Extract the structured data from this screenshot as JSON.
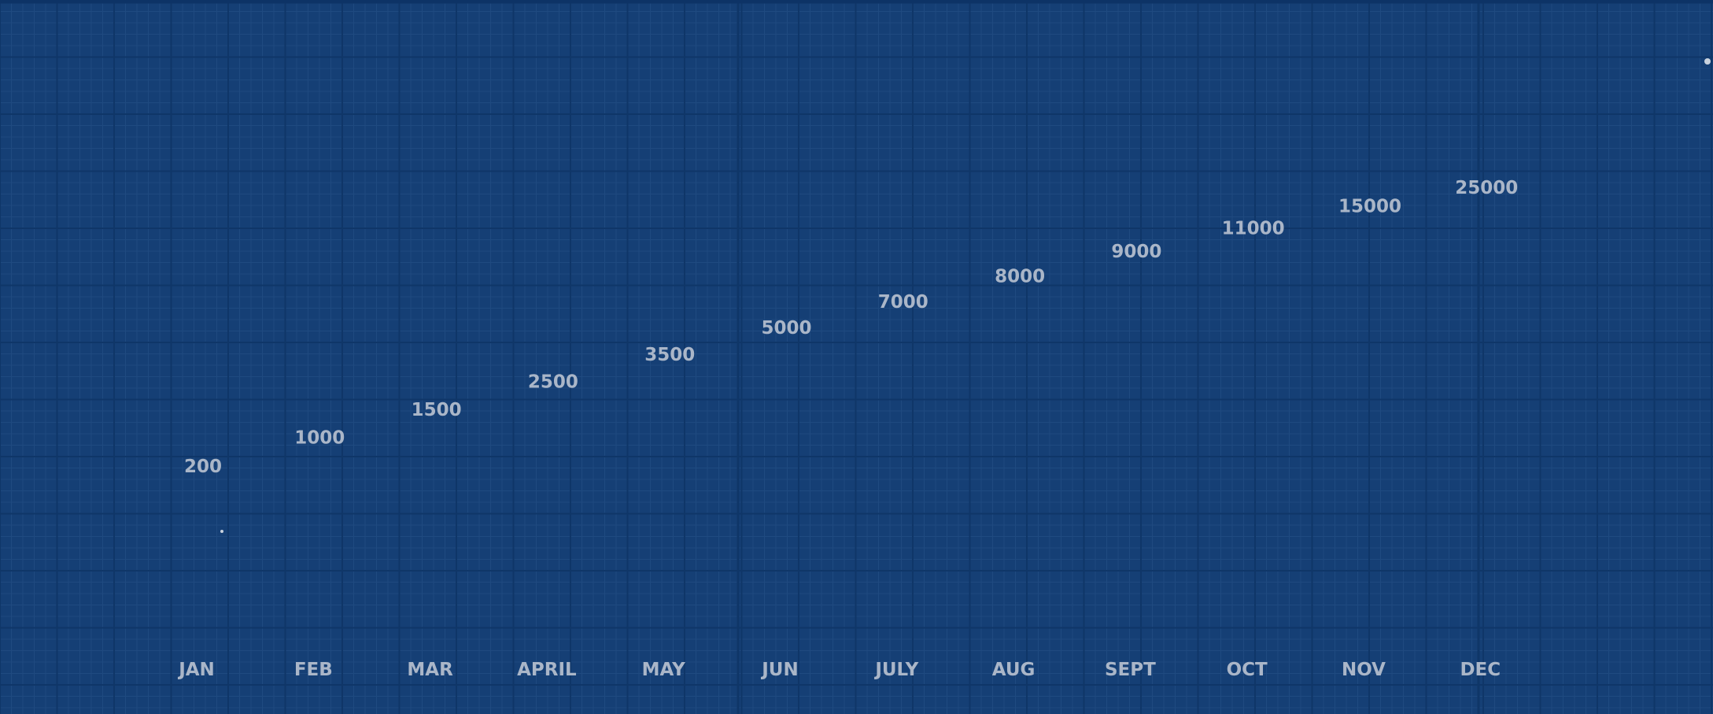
{
  "chart_data": {
    "type": "scatter",
    "categories": [
      "JAN",
      "FEB",
      "MAR",
      "APRIL",
      "MAY",
      "JUN",
      "JULY",
      "AUG",
      "SEPT",
      "OCT",
      "NOV",
      "DEC"
    ],
    "values": [
      200,
      1000,
      1500,
      2500,
      3500,
      5000,
      7000,
      8000,
      9000,
      11000,
      15000,
      25000
    ],
    "data_labels": [
      "200",
      "1000",
      "1500",
      "2500",
      "3500",
      "5000",
      "7000",
      "8000",
      "9000",
      "11000",
      "15000",
      "25000"
    ],
    "title": "",
    "xlabel": "",
    "ylabel": "",
    "grid": true,
    "colors": {
      "background": "#153f75",
      "grid_fine": "#1f4a80",
      "grid_major": "#0f3668",
      "label": "#aab6c8",
      "marker": "#c9d2de"
    }
  }
}
